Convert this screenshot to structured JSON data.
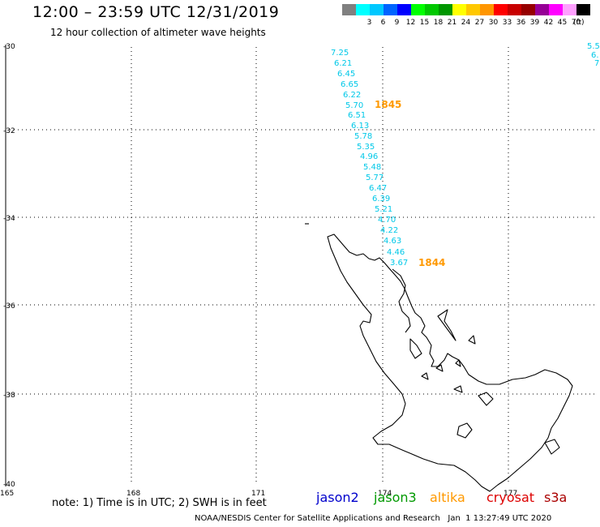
{
  "title": "12:00 – 23:59 UTC 12/31/2019",
  "subtitle": "12 hour collection of altimeter wave heights",
  "legend": {
    "unit": "(ft)",
    "items": [
      {
        "label": "",
        "color": "#808080"
      },
      {
        "label": "3",
        "color": "#00ffff"
      },
      {
        "label": "6",
        "color": "#00c8ff"
      },
      {
        "label": "9",
        "color": "#0064ff"
      },
      {
        "label": "12",
        "color": "#0000ff"
      },
      {
        "label": "15",
        "color": "#00ff00"
      },
      {
        "label": "18",
        "color": "#00c800"
      },
      {
        "label": "21",
        "color": "#009600"
      },
      {
        "label": "24",
        "color": "#ffff00"
      },
      {
        "label": "27",
        "color": "#ffc800"
      },
      {
        "label": "30",
        "color": "#ff9600"
      },
      {
        "label": "33",
        "color": "#ff0000"
      },
      {
        "label": "36",
        "color": "#c80000"
      },
      {
        "label": "39",
        "color": "#960000"
      },
      {
        "label": "42",
        "color": "#960096"
      },
      {
        "label": "45",
        "color": "#ff00ff"
      },
      {
        "label": "70",
        "color": "#ffa0ff"
      },
      {
        "label": "",
        "color": "#000000"
      }
    ]
  },
  "axes": {
    "lat_ticks": [
      "-30",
      "-32",
      "-34",
      "-36",
      "-38",
      "-40"
    ],
    "lon_ticks": [
      "165",
      "168",
      "171",
      "174",
      "177"
    ]
  },
  "track": {
    "color": "#00c8e8",
    "values": [
      "7.25",
      "6.21",
      "6.45",
      "6.65",
      "6.22",
      "5.70",
      "6.51",
      "6.13",
      "5.78",
      "5.35",
      "4.96",
      "5.48",
      "5.77",
      "6.47",
      "6.39",
      "5.21",
      "4.70",
      "4.22",
      "4.63",
      "4.46",
      "3.67"
    ],
    "time_labels": [
      "1845",
      "1844"
    ],
    "time_color": "#ff9900",
    "edge_values": [
      "5.5",
      "6.",
      "7"
    ]
  },
  "note": "note: 1) Time is in UTC; 2) SWH is in feet",
  "satellites": [
    {
      "name": "jason2",
      "color": "#0000cc"
    },
    {
      "name": "jason3",
      "color": "#009900"
    },
    {
      "name": "altika",
      "color": "#ff9900"
    },
    {
      "name": "cryosat",
      "color": "#dd0000"
    },
    {
      "name": "s3a",
      "color": "#aa0000"
    }
  ],
  "footer": "NOAA/NESDIS Center for Satellite Applications and Research   Jan  1 13:27:49 UTC 2020",
  "icons": {
    "coastline": "coastline-shape"
  }
}
